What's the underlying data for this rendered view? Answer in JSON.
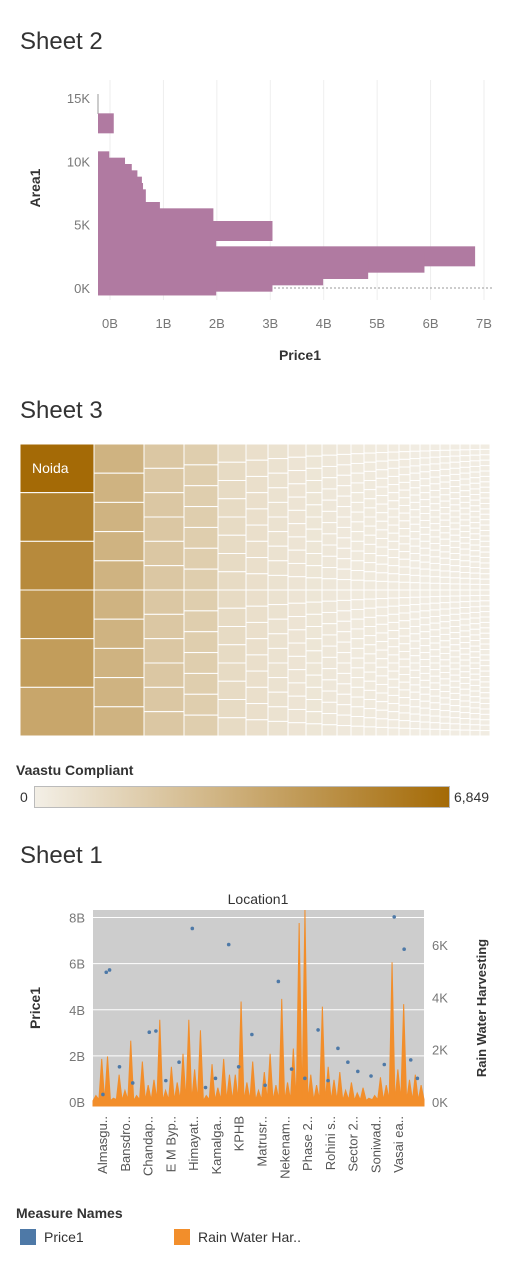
{
  "sheet2": {
    "title": "Sheet 2",
    "chart_data": {
      "type": "bar",
      "orientation": "horizontal",
      "xlabel": "Price1",
      "ylabel": "Area1",
      "x_ticks": [
        "0B",
        "1B",
        "2B",
        "3B",
        "4B",
        "5B",
        "6B",
        "7B"
      ],
      "y_ticks": [
        "15K",
        "10K",
        "5K",
        "0K"
      ],
      "xlim": [
        0,
        7000000000
      ],
      "ylim": [
        0,
        16000
      ],
      "color": "#b07aa1",
      "bars": [
        {
          "area": 13000,
          "price": 280000000
        },
        {
          "area": 10000,
          "price": 200000000
        },
        {
          "area": 9500,
          "price": 480000000
        },
        {
          "area": 9000,
          "price": 600000000
        },
        {
          "area": 8500,
          "price": 700000000
        },
        {
          "area": 8000,
          "price": 780000000
        },
        {
          "area": 7500,
          "price": 800000000
        },
        {
          "area": 7000,
          "price": 850000000
        },
        {
          "area": 6000,
          "price": 1100000000
        },
        {
          "area": 5500,
          "price": 2050000000
        },
        {
          "area": 4500,
          "price": 3100000000
        },
        {
          "area": 3000,
          "price": 2100000000
        },
        {
          "area": 2500,
          "price": 6700000000
        },
        {
          "area": 2000,
          "price": 5800000000
        },
        {
          "area": 1500,
          "price": 4800000000
        },
        {
          "area": 1000,
          "price": 4000000000
        },
        {
          "area": 500,
          "price": 3100000000
        },
        {
          "area": 200,
          "price": 2100000000
        }
      ]
    }
  },
  "sheet3": {
    "title": "Sheet 3",
    "chart_data": {
      "type": "treemap",
      "largest_label": "Noida",
      "color_legend_title": "Vaastu Compliant",
      "color_min": "0",
      "color_max": "6,849",
      "color_low": "#f3efe6",
      "color_high": "#a46a06"
    }
  },
  "sheet1": {
    "title": "Sheet 1",
    "chart_data": {
      "type": "combo",
      "title": "Location1",
      "ylabel_left": "Price1",
      "ylabel_right": "Rain Water Harvesting",
      "left_ticks": [
        "8B",
        "6B",
        "4B",
        "2B",
        "0B"
      ],
      "right_ticks": [
        "6K",
        "4K",
        "2K",
        "0K"
      ],
      "ylim_left": [
        0,
        8500000000
      ],
      "ylim_right": [
        0,
        7500
      ],
      "categories": [
        "Almasgu..",
        "Bansdro..",
        "Chandap..",
        "E M Byp..",
        "Himayat..",
        "Kamalga..",
        "KPHB",
        "Matrusr..",
        "Nekenam..",
        "Phase 2..",
        "Rohini s..",
        "Sector 2..",
        "Soniwad..",
        "Vasai ea.."
      ],
      "series": [
        {
          "name": "Price1",
          "type": "scatter",
          "color": "#4e79a7"
        },
        {
          "name": "Rain Water Har..",
          "type": "area",
          "color": "#f28e2b"
        }
      ],
      "rwh_peaks": [
        400,
        1800,
        1900,
        300,
        1200,
        600,
        2500,
        400,
        1700,
        800,
        1000,
        3300,
        600,
        1500,
        900,
        2000,
        3300,
        1400,
        2900,
        400,
        1600,
        700,
        1800,
        1200,
        1200,
        4000,
        900,
        1700,
        600,
        1300,
        2000,
        800,
        4100,
        900,
        2200,
        7000,
        7500,
        1200,
        800,
        3800,
        1500,
        1000,
        1300,
        600,
        900,
        500,
        700,
        300,
        400,
        1100,
        800,
        5500,
        1400,
        3900,
        1000,
        1200,
        800
      ],
      "price_points": [
        [
          3,
          500
        ],
        [
          4,
          5800
        ],
        [
          5,
          5900
        ],
        [
          8,
          1700
        ],
        [
          12,
          1000
        ],
        [
          17,
          3200
        ],
        [
          19,
          3250
        ],
        [
          22,
          1100
        ],
        [
          26,
          1900
        ],
        [
          30,
          7700
        ],
        [
          34,
          800
        ],
        [
          37,
          1200
        ],
        [
          41,
          7000
        ],
        [
          44,
          1700
        ],
        [
          48,
          3100
        ],
        [
          52,
          900
        ],
        [
          56,
          5400
        ],
        [
          60,
          1600
        ],
        [
          64,
          1200
        ],
        [
          68,
          3300
        ],
        [
          71,
          1100
        ],
        [
          74,
          2500
        ],
        [
          77,
          1900
        ],
        [
          80,
          1500
        ],
        [
          84,
          1300
        ],
        [
          88,
          1800
        ],
        [
          91,
          8200
        ],
        [
          94,
          6800
        ],
        [
          96,
          2000
        ],
        [
          98,
          1200
        ]
      ]
    },
    "legend": {
      "title": "Measure Names",
      "items": [
        {
          "label": "Price1",
          "color": "#4e79a7"
        },
        {
          "label": "Rain Water Har..",
          "color": "#f28e2b"
        }
      ]
    }
  }
}
